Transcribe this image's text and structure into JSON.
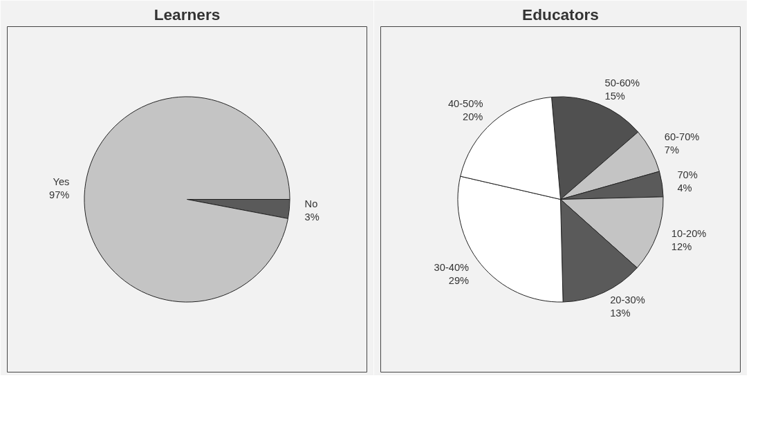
{
  "chart_data": [
    {
      "type": "pie",
      "title": "Learners",
      "categories": [
        "No",
        "Yes"
      ],
      "values": [
        3,
        97
      ],
      "value_labels": [
        "3%",
        "97%"
      ],
      "colors": [
        "#5a5a5a",
        "#c4c4c4"
      ]
    },
    {
      "type": "pie",
      "title": "Educators",
      "categories": [
        "50-60%",
        "60-70%",
        "70%",
        "10-20%",
        "20-30%",
        "30-40%",
        "40-50%"
      ],
      "values": [
        15,
        7,
        4,
        12,
        13,
        29,
        20
      ],
      "value_labels": [
        "15%",
        "7%",
        "4%",
        "12%",
        "13%",
        "29%",
        "20%"
      ],
      "colors": [
        "#505050",
        "#c4c4c4",
        "#5a5a5a",
        "#c4c4c4",
        "#5a5a5a",
        "#ffffff",
        "#ffffff"
      ]
    }
  ]
}
